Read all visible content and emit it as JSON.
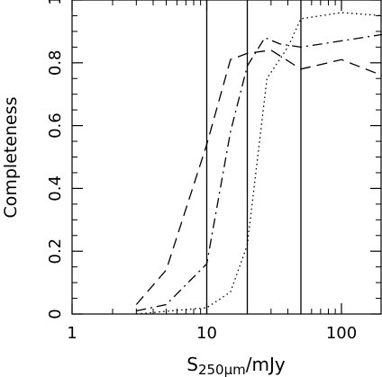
{
  "chart_data": {
    "type": "line",
    "title": "",
    "xlabel": "S250μm/mJy",
    "xlabel_main": "S",
    "xlabel_sub": "250μm",
    "xlabel_tail": "/mJy",
    "ylabel": "Completeness",
    "xscale": "log",
    "xlim": [
      1,
      200
    ],
    "ylim": [
      0,
      1
    ],
    "xticks": [
      {
        "value": 1,
        "label": "1"
      },
      {
        "value": 10,
        "label": "10"
      },
      {
        "value": 100,
        "label": "100"
      }
    ],
    "yticks": [
      {
        "value": 0,
        "label": "0"
      },
      {
        "value": 0.2,
        "label": "0.2"
      },
      {
        "value": 0.4,
        "label": "0.4"
      },
      {
        "value": 0.6,
        "label": "0.6"
      },
      {
        "value": 0.8,
        "label": "0.8"
      },
      {
        "value": 1,
        "label": "1"
      }
    ],
    "grid": false,
    "legend": "none",
    "vertical_lines": [
      10,
      20,
      50
    ],
    "series": [
      {
        "style": "dashed",
        "x": [
          3.0,
          5.0,
          10.0,
          15.0,
          20.0,
          30.0,
          50.0,
          100.0,
          200.0
        ],
        "y": [
          0.03,
          0.14,
          0.54,
          0.81,
          0.83,
          0.84,
          0.78,
          0.81,
          0.76
        ]
      },
      {
        "style": "dashdot",
        "x": [
          3.0,
          5.0,
          10.0,
          15.0,
          20.0,
          27.0,
          35.0,
          50.0,
          100.0,
          200.0
        ],
        "y": [
          0.01,
          0.03,
          0.16,
          0.58,
          0.79,
          0.88,
          0.86,
          0.85,
          0.87,
          0.89
        ]
      },
      {
        "style": "dotted",
        "x": [
          3.0,
          10.0,
          15.0,
          20.0,
          28.0,
          40.0,
          50.0,
          100.0,
          200.0
        ],
        "y": [
          0.0,
          0.02,
          0.07,
          0.22,
          0.75,
          0.85,
          0.94,
          0.96,
          0.95
        ]
      }
    ],
    "colors": {
      "line": "#000000",
      "background": "#ffffff"
    }
  }
}
